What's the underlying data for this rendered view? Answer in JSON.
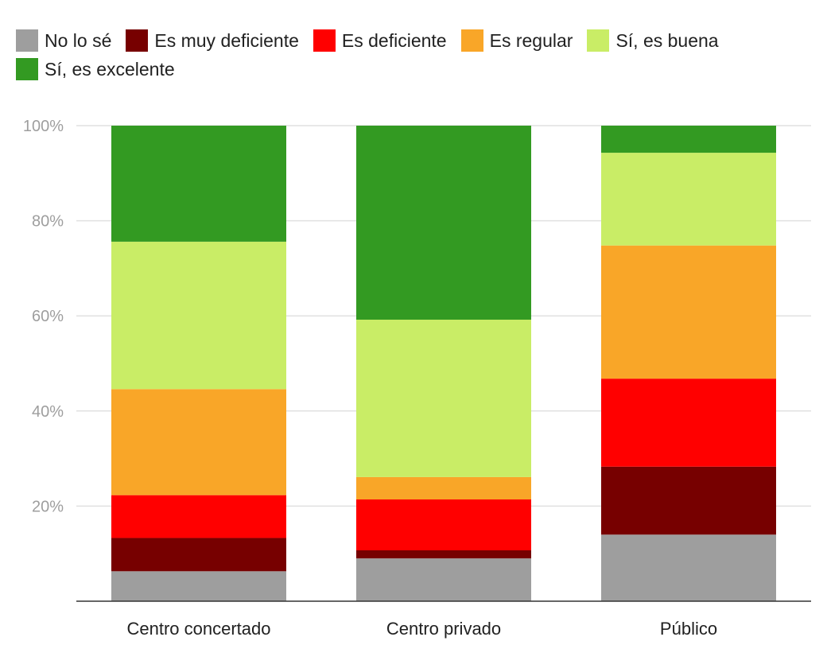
{
  "chart_data": {
    "type": "bar",
    "stacked": true,
    "categories": [
      "Centro concertado",
      "Centro privado",
      "Público"
    ],
    "series": [
      {
        "name": "No lo sé",
        "color": "#9e9e9e",
        "values": [
          6.3,
          9.0,
          14.0
        ]
      },
      {
        "name": "Es muy deficiente",
        "color": "#770000",
        "values": [
          7.0,
          1.7,
          14.3
        ]
      },
      {
        "name": "Es deficiente",
        "color": "#ff0000",
        "values": [
          9.0,
          10.7,
          18.5
        ]
      },
      {
        "name": "Es regular",
        "color": "#f9a628",
        "values": [
          22.3,
          4.7,
          28.0
        ]
      },
      {
        "name": "Sí, es buena",
        "color": "#c9ed66",
        "values": [
          31.0,
          33.1,
          19.5
        ]
      },
      {
        "name": "Sí, es excelente",
        "color": "#339a22",
        "values": [
          24.4,
          40.8,
          5.7
        ]
      }
    ],
    "y_ticks": [
      "20%",
      "40%",
      "60%",
      "80%",
      "100%"
    ],
    "y_tick_values": [
      20,
      40,
      60,
      80,
      100
    ],
    "ylim": [
      0,
      100
    ],
    "grid": true,
    "legend_position": "top-left"
  }
}
